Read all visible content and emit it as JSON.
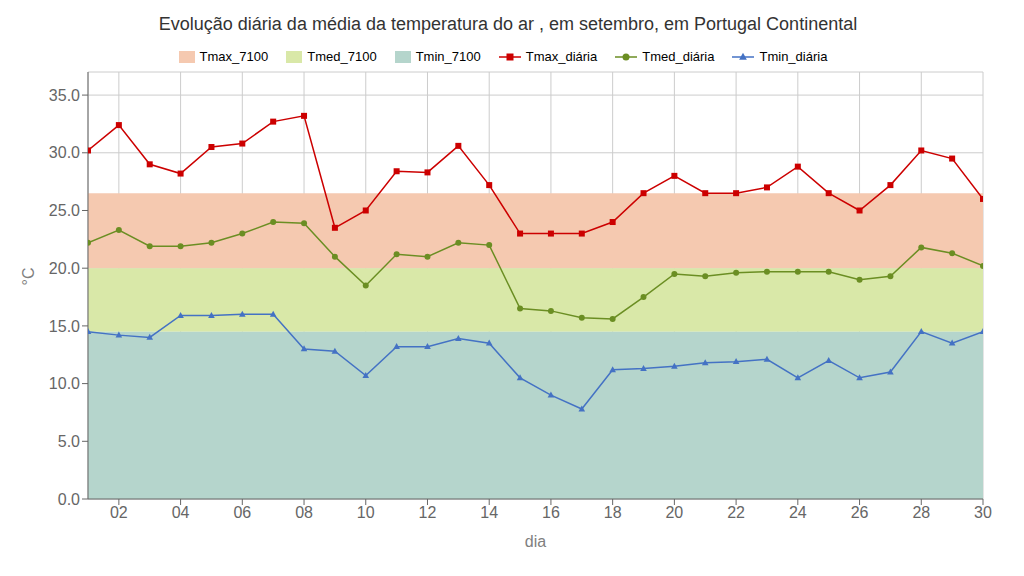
{
  "chart_data": {
    "type": "line",
    "title": "Evolução diária da média da temperatura do ar , em setembro, em Portugal Continental",
    "x_label": "dia",
    "y_label": "°C",
    "x": [
      1,
      2,
      3,
      4,
      5,
      6,
      7,
      8,
      9,
      10,
      11,
      12,
      13,
      14,
      15,
      16,
      17,
      18,
      19,
      20,
      21,
      22,
      23,
      24,
      25,
      26,
      27,
      28,
      29,
      30
    ],
    "series": [
      {
        "name": "Tmax_diária",
        "color": "#cc0000",
        "marker": "square",
        "values": [
          30.2,
          32.4,
          29.0,
          28.2,
          30.5,
          30.8,
          32.7,
          33.2,
          23.5,
          25.0,
          28.4,
          28.3,
          30.6,
          27.2,
          23.0,
          23.0,
          23.0,
          24.0,
          26.5,
          28.0,
          26.5,
          26.5,
          27.0,
          28.8,
          26.5,
          25.0,
          27.2,
          30.2,
          29.5,
          26.0
        ]
      },
      {
        "name": "Tmed_diária",
        "color": "#6b8e23",
        "marker": "circle",
        "values": [
          22.2,
          23.3,
          21.9,
          21.9,
          22.2,
          23.0,
          24.0,
          23.9,
          21.0,
          18.5,
          21.2,
          21.0,
          22.2,
          22.0,
          16.5,
          16.3,
          15.7,
          15.6,
          17.5,
          19.5,
          19.3,
          19.6,
          19.7,
          19.7,
          19.7,
          19.0,
          19.3,
          21.8,
          21.3,
          20.2
        ]
      },
      {
        "name": "Tmin_diária",
        "color": "#4472c4",
        "marker": "triangle",
        "values": [
          14.5,
          14.2,
          14.0,
          15.9,
          15.9,
          16.0,
          16.0,
          13.0,
          12.8,
          10.7,
          13.2,
          13.2,
          13.9,
          13.5,
          10.5,
          9.0,
          7.8,
          11.2,
          11.3,
          11.5,
          11.8,
          11.9,
          12.1,
          10.5,
          12.0,
          10.5,
          11.0,
          14.5,
          13.5,
          14.5
        ]
      }
    ],
    "bands": [
      {
        "name": "Tmax_7100",
        "color": "#f5c9b0",
        "from": 20.0,
        "to": 26.5
      },
      {
        "name": "Tmed_7100",
        "color": "#d9e8a8",
        "from": 14.5,
        "to": 20.0
      },
      {
        "name": "Tmin_7100",
        "color": "#b5d5cc",
        "from": 0.0,
        "to": 14.5
      }
    ],
    "xlim": [
      1,
      30
    ],
    "xticks": [
      {
        "value": 2,
        "label": "02"
      },
      {
        "value": 4,
        "label": "04"
      },
      {
        "value": 6,
        "label": "06"
      },
      {
        "value": 8,
        "label": "08"
      },
      {
        "value": 10,
        "label": "10"
      },
      {
        "value": 12,
        "label": "12"
      },
      {
        "value": 14,
        "label": "14"
      },
      {
        "value": 16,
        "label": "16"
      },
      {
        "value": 18,
        "label": "18"
      },
      {
        "value": 20,
        "label": "20"
      },
      {
        "value": 22,
        "label": "22"
      },
      {
        "value": 24,
        "label": "24"
      },
      {
        "value": 26,
        "label": "26"
      },
      {
        "value": 28,
        "label": "28"
      },
      {
        "value": 30,
        "label": "30"
      }
    ],
    "ylim": [
      0.0,
      37.0
    ],
    "yticks": [
      {
        "value": 0.0,
        "label": "0.0"
      },
      {
        "value": 5.0,
        "label": "5.0"
      },
      {
        "value": 10.0,
        "label": "10.0"
      },
      {
        "value": 15.0,
        "label": "15.0"
      },
      {
        "value": 20.0,
        "label": "20.0"
      },
      {
        "value": 25.0,
        "label": "25.0"
      },
      {
        "value": 30.0,
        "label": "30.0"
      },
      {
        "value": 35.0,
        "label": "35.0"
      }
    ],
    "grid": true,
    "legend": "top"
  }
}
